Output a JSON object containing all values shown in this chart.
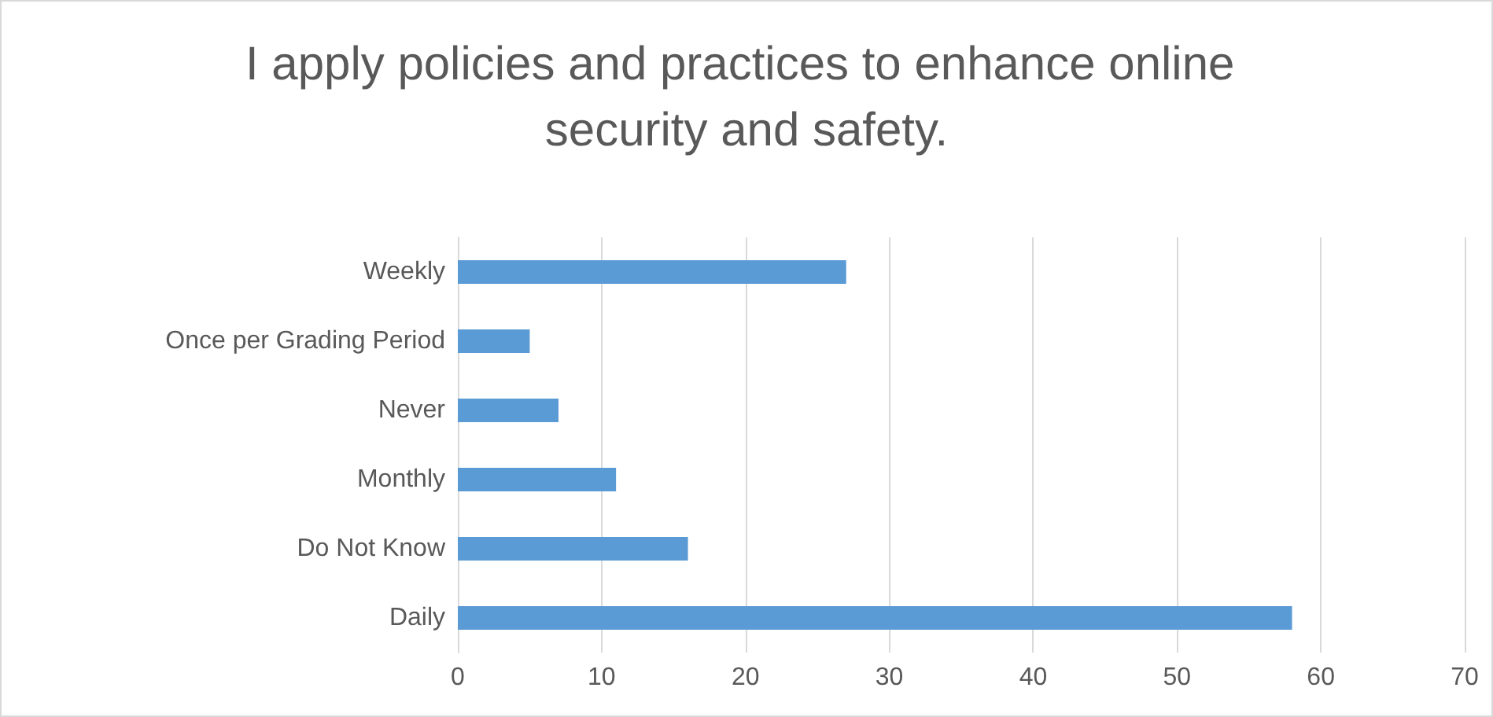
{
  "chart_data": {
    "type": "bar",
    "orientation": "horizontal",
    "title": "I apply policies and practices to enhance online security and safety.",
    "categories": [
      "Weekly",
      "Once per Grading Period",
      "Never",
      "Monthly",
      "Do Not Know",
      "Daily"
    ],
    "values": [
      27,
      5,
      7,
      11,
      16,
      58
    ],
    "color": "#5b9bd5",
    "xlim": [
      0,
      70
    ],
    "xticks": [
      0,
      10,
      20,
      30,
      40,
      50,
      60,
      70
    ],
    "grid": "x"
  }
}
